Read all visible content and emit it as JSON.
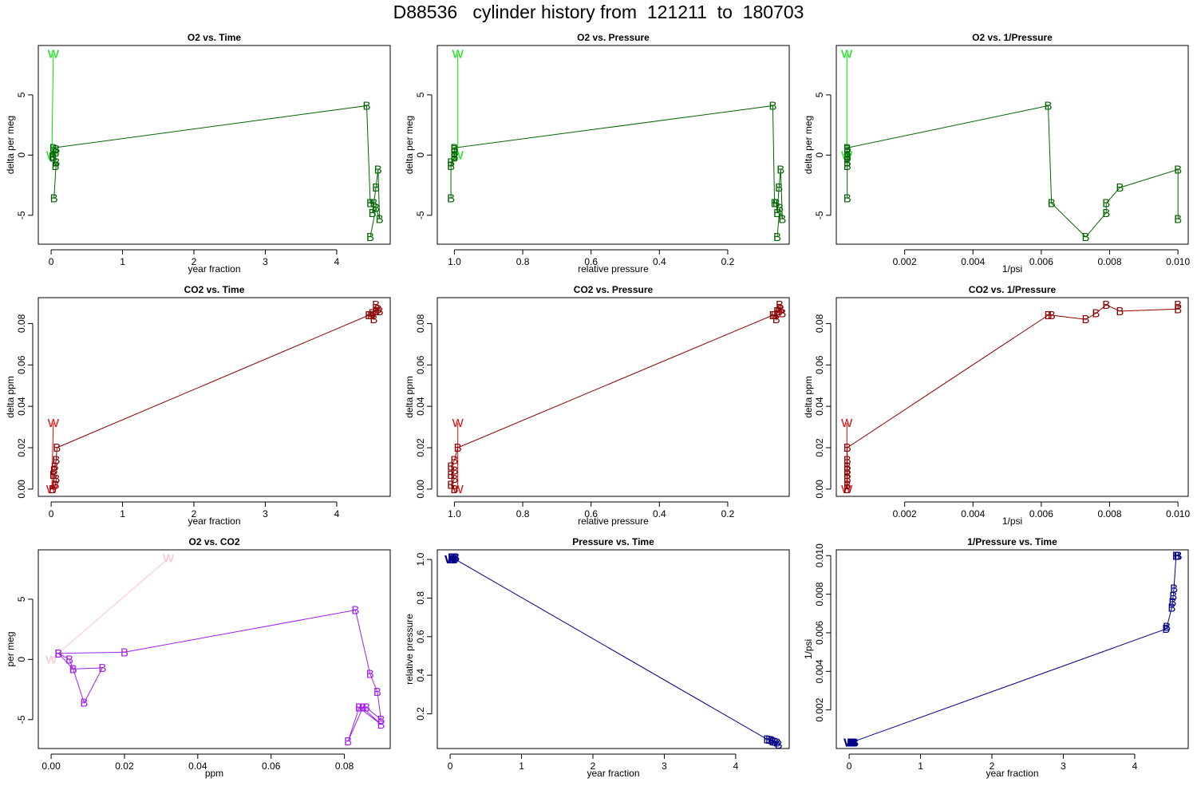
{
  "page": {
    "title": "D88536   cylinder history from  121211  to  180703"
  },
  "chart_data": [
    {
      "type": "line",
      "title": "O2 vs. Time",
      "xlabel": "year fraction",
      "ylabel": "delta per meg",
      "xlim": [
        -0.18,
        4.75
      ],
      "ylim": [
        -7.4,
        9.1
      ],
      "xticks": [
        0,
        1,
        2,
        3,
        4
      ],
      "yticks": [
        -5,
        0,
        5
      ],
      "series": [
        {
          "marker": "W",
          "color": "#00e600",
          "x": [
            0.01,
            0.03
          ],
          "y": [
            0.0,
            8.4
          ]
        },
        {
          "marker": "B",
          "color": "#006400",
          "x": [
            0.04,
            0.07,
            0.06,
            0.03,
            0.02,
            0.06,
            0.07,
            0.03,
            4.42,
            4.47,
            4.52,
            4.5,
            4.55,
            4.58,
            4.6,
            4.55,
            4.47
          ],
          "y": [
            -3.6,
            -0.6,
            -0.9,
            -0.2,
            -0.1,
            0.2,
            0.5,
            0.6,
            4.1,
            -4.0,
            -4.0,
            -4.8,
            -2.7,
            -1.2,
            -5.3,
            -4.4,
            -6.8
          ]
        }
      ]
    },
    {
      "type": "line",
      "title": "O2 vs. Pressure",
      "xlabel": "relative pressure",
      "ylabel": "delta per meg",
      "xlim": [
        1.05,
        0.02
      ],
      "ylim": [
        -7.4,
        9.1
      ],
      "xticks": [
        1.0,
        0.8,
        0.6,
        0.4,
        0.2
      ],
      "xticklabels": [
        "1.0",
        "0.8",
        "0.6",
        "0.4",
        "0.2"
      ],
      "yticks": [
        -5,
        0,
        5
      ],
      "series": [
        {
          "marker": "W",
          "color": "#00e600",
          "x": [
            0.99,
            0.99
          ],
          "y": [
            0.0,
            8.4
          ]
        },
        {
          "marker": "B",
          "color": "#006400",
          "x": [
            1.01,
            1.01,
            1.01,
            1.0,
            1.0,
            1.0,
            1.0,
            1.0,
            0.068,
            0.063,
            0.058,
            0.055,
            0.05,
            0.045,
            0.04,
            0.048,
            0.055
          ],
          "y": [
            -3.6,
            -0.6,
            -0.9,
            -0.2,
            -0.1,
            0.2,
            0.5,
            0.6,
            4.1,
            -4.0,
            -4.0,
            -4.8,
            -2.7,
            -1.2,
            -5.3,
            -4.4,
            -6.8
          ]
        }
      ]
    },
    {
      "type": "line",
      "title": "O2 vs. 1/Pressure",
      "xlabel": "1/psi",
      "ylabel": "delta per meg",
      "xlim": [
        0.0,
        0.0103
      ],
      "ylim": [
        -7.4,
        9.1
      ],
      "xticks": [
        0.002,
        0.004,
        0.006,
        0.008,
        0.01
      ],
      "xticklabels": [
        "0.002",
        "0.004",
        "0.006",
        "0.008",
        "0.010"
      ],
      "yticks": [
        -5,
        0,
        5
      ],
      "series": [
        {
          "marker": "W",
          "color": "#00e600",
          "x": [
            0.00031,
            0.00031
          ],
          "y": [
            0.0,
            8.4
          ]
        },
        {
          "marker": "B",
          "color": "#006400",
          "x": [
            0.00032,
            0.00032,
            0.00032,
            0.00032,
            0.00032,
            0.00032,
            0.00032,
            0.00032,
            0.0062,
            0.0063,
            0.0073,
            0.0079,
            0.0079,
            0.0083,
            0.01,
            0.01
          ],
          "y": [
            -3.6,
            -0.6,
            -0.9,
            -0.2,
            -0.1,
            0.2,
            0.5,
            0.6,
            4.1,
            -4.0,
            -6.8,
            -4.8,
            -4.0,
            -2.7,
            -1.2,
            -5.3
          ]
        }
      ]
    },
    {
      "type": "line",
      "title": "CO2 vs. Time",
      "xlabel": "year fraction",
      "ylabel": "delta ppm",
      "xlim": [
        -0.18,
        4.75
      ],
      "ylim": [
        -0.0035,
        0.0925
      ],
      "xticks": [
        0,
        1,
        2,
        3,
        4
      ],
      "yticks": [
        0.0,
        0.02,
        0.04,
        0.06,
        0.08
      ],
      "yticklabels": [
        "0.00",
        "0.02",
        "0.04",
        "0.06",
        "0.08"
      ],
      "series": [
        {
          "marker": "W",
          "color": "#e60000",
          "x": [
            0.01,
            0.03
          ],
          "y": [
            0.0,
            0.032
          ]
        },
        {
          "marker": "B",
          "color": "#8b0000",
          "x": [
            0.02,
            0.06,
            0.07,
            0.03,
            0.04,
            0.05,
            0.07,
            0.08,
            4.45,
            4.48,
            4.52,
            4.55,
            4.6,
            4.58,
            4.5,
            4.55
          ],
          "y": [
            0.0,
            0.002,
            0.005,
            0.007,
            0.009,
            0.011,
            0.014,
            0.02,
            0.084,
            0.084,
            0.082,
            0.086,
            0.086,
            0.087,
            0.085,
            0.089
          ]
        }
      ]
    },
    {
      "type": "line",
      "title": "CO2 vs. Pressure",
      "xlabel": "relative pressure",
      "ylabel": "delta ppm",
      "xlim": [
        1.05,
        0.02
      ],
      "ylim": [
        -0.0035,
        0.0925
      ],
      "xticks": [
        1.0,
        0.8,
        0.6,
        0.4,
        0.2
      ],
      "xticklabels": [
        "1.0",
        "0.8",
        "0.6",
        "0.4",
        "0.2"
      ],
      "yticks": [
        0.0,
        0.02,
        0.04,
        0.06,
        0.08
      ],
      "yticklabels": [
        "0.00",
        "0.02",
        "0.04",
        "0.06",
        "0.08"
      ],
      "series": [
        {
          "marker": "W",
          "color": "#e60000",
          "x": [
            0.99,
            0.99
          ],
          "y": [
            0.0,
            0.032
          ]
        },
        {
          "marker": "B",
          "color": "#8b0000",
          "x": [
            1.0,
            1.01,
            1.0,
            1.01,
            1.0,
            1.01,
            1.0,
            0.99,
            0.068,
            0.063,
            0.058,
            0.055,
            0.05,
            0.045,
            0.04,
            0.048
          ],
          "y": [
            0.0,
            0.002,
            0.005,
            0.007,
            0.009,
            0.011,
            0.014,
            0.02,
            0.084,
            0.084,
            0.082,
            0.086,
            0.086,
            0.087,
            0.085,
            0.089
          ]
        }
      ]
    },
    {
      "type": "line",
      "title": "CO2 vs. 1/Pressure",
      "xlabel": "1/psi",
      "ylabel": "delta ppm",
      "xlim": [
        0.0,
        0.0103
      ],
      "ylim": [
        -0.0035,
        0.0925
      ],
      "xticks": [
        0.002,
        0.004,
        0.006,
        0.008,
        0.01
      ],
      "xticklabels": [
        "0.002",
        "0.004",
        "0.006",
        "0.008",
        "0.010"
      ],
      "yticks": [
        0.0,
        0.02,
        0.04,
        0.06,
        0.08
      ],
      "yticklabels": [
        "0.00",
        "0.02",
        "0.04",
        "0.06",
        "0.08"
      ],
      "series": [
        {
          "marker": "W",
          "color": "#e60000",
          "x": [
            0.00031,
            0.00031
          ],
          "y": [
            0.0,
            0.032
          ]
        },
        {
          "marker": "B",
          "color": "#8b0000",
          "x": [
            0.00032,
            0.00032,
            0.00032,
            0.00032,
            0.00032,
            0.00032,
            0.00032,
            0.00032,
            0.0062,
            0.0063,
            0.0073,
            0.0076,
            0.0079,
            0.0083,
            0.01,
            0.01
          ],
          "y": [
            0.0,
            0.002,
            0.005,
            0.007,
            0.009,
            0.011,
            0.014,
            0.02,
            0.084,
            0.084,
            0.082,
            0.085,
            0.089,
            0.086,
            0.087,
            0.089
          ]
        }
      ]
    },
    {
      "type": "line",
      "title": "O2 vs. CO2",
      "xlabel": "ppm",
      "ylabel": "per meg",
      "xlim": [
        -0.0035,
        0.0925
      ],
      "ylim": [
        -7.4,
        9.1
      ],
      "xticks": [
        0.0,
        0.02,
        0.04,
        0.06,
        0.08
      ],
      "xticklabels": [
        "0.00",
        "0.02",
        "0.04",
        "0.06",
        "0.08"
      ],
      "yticks": [
        -5,
        0,
        5
      ],
      "series": [
        {
          "marker": "W",
          "color": "#ffc0cb",
          "x": [
            0.0,
            0.032
          ],
          "y": [
            0.0,
            8.4
          ]
        },
        {
          "marker": "B",
          "color": "#a020f0",
          "x": [
            0.002,
            0.005,
            0.006,
            0.014,
            0.009,
            0.006,
            0.002,
            0.02,
            0.083,
            0.087,
            0.089,
            0.09,
            0.086,
            0.084,
            0.09,
            0.085,
            0.081,
            0.084
          ],
          "y": [
            0.5,
            0.0,
            -0.8,
            -0.7,
            -3.6,
            -0.8,
            0.5,
            0.6,
            4.1,
            -1.2,
            -2.7,
            -5.0,
            -4.0,
            -4.0,
            -5.4,
            -4.0,
            -6.8,
            -4.0
          ]
        }
      ]
    },
    {
      "type": "line",
      "title": "Pressure vs. Time",
      "xlabel": "year fraction",
      "ylabel": "relative pressure",
      "xlim": [
        -0.18,
        4.75
      ],
      "ylim": [
        0.02,
        1.05
      ],
      "xticks": [
        0,
        1,
        2,
        3,
        4
      ],
      "yticks": [
        0.2,
        0.4,
        0.6,
        0.8,
        1.0
      ],
      "yticklabels": [
        "0.2",
        "0.4",
        "0.6",
        "0.8",
        "1.0"
      ],
      "series": [
        {
          "marker": "W",
          "color": "#00008b",
          "x": [
            0.0,
            0.01
          ],
          "y": [
            1.0,
            1.0
          ]
        },
        {
          "marker": "B",
          "color": "#00008b",
          "x": [
            0.02,
            0.03,
            0.05,
            0.06,
            0.07,
            0.04,
            0.08,
            0.03,
            4.44,
            4.5,
            4.52,
            4.55,
            4.58,
            4.6,
            4.47
          ],
          "y": [
            1.01,
            1.0,
            1.01,
            1.0,
            1.01,
            1.0,
            1.01,
            1.01,
            0.068,
            0.063,
            0.058,
            0.055,
            0.05,
            0.04,
            0.065
          ]
        }
      ]
    },
    {
      "type": "line",
      "title": "1/Pressure vs. Time",
      "xlabel": "year fraction",
      "ylabel": "1/psi",
      "xlim": [
        -0.18,
        4.75
      ],
      "ylim": [
        0.0,
        0.0103
      ],
      "xticks": [
        0,
        1,
        2,
        3,
        4
      ],
      "yticks": [
        0.002,
        0.004,
        0.006,
        0.008,
        0.01
      ],
      "yticklabels": [
        "0.002",
        "0.004",
        "0.006",
        "0.008",
        "0.010"
      ],
      "series": [
        {
          "marker": "W",
          "color": "#00008b",
          "x": [
            0.0,
            0.01
          ],
          "y": [
            0.00031,
            0.00031
          ]
        },
        {
          "marker": "B",
          "color": "#00008b",
          "x": [
            0.02,
            0.03,
            0.05,
            0.06,
            0.07,
            0.04,
            0.08,
            0.03,
            4.44,
            4.45,
            4.52,
            4.53,
            4.54,
            4.55,
            4.58,
            4.6,
            4.61
          ],
          "y": [
            0.00031,
            0.00032,
            0.00031,
            0.00032,
            0.00031,
            0.00032,
            0.00031,
            0.00032,
            0.0062,
            0.0063,
            0.0073,
            0.0076,
            0.0079,
            0.0083,
            0.01,
            0.01,
            0.01
          ]
        }
      ]
    }
  ]
}
